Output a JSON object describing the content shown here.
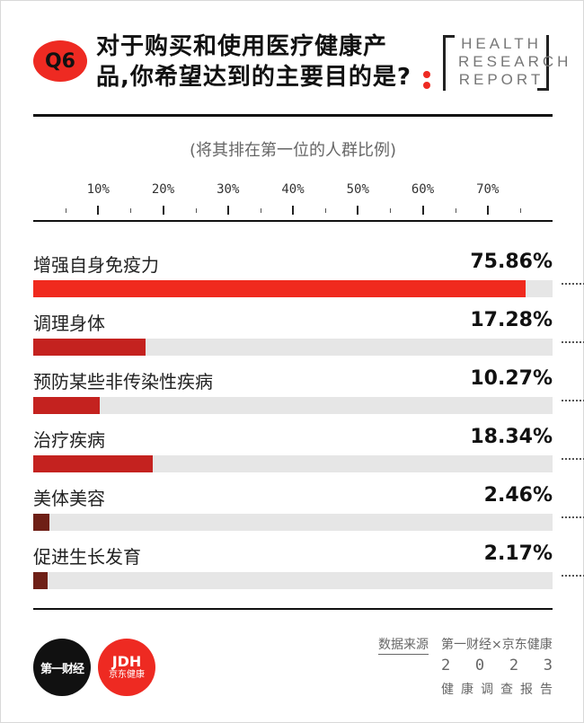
{
  "header": {
    "badge": "Q6",
    "question": "对于购买和使用医疗健康产品,你希望达到的主要目的是?",
    "report_lines": [
      "HEALTH",
      "RESEARCH",
      "REPORT"
    ]
  },
  "chart_data": {
    "type": "bar",
    "orientation": "horizontal",
    "subtitle": "(将其排在第一位的人群比例)",
    "x_ticks": [
      "10%",
      "20%",
      "30%",
      "40%",
      "50%",
      "60%",
      "70%"
    ],
    "xlim": [
      0,
      80
    ],
    "categories": [
      "增强自身免疫力",
      "调理身体",
      "预防某些非传染性疾病",
      "治疗疾病",
      "美体美容",
      "促进生长发育"
    ],
    "values": [
      75.86,
      17.28,
      10.27,
      18.34,
      2.46,
      2.17
    ],
    "value_labels": [
      "75.86%",
      "17.28%",
      "10.27%",
      "18.34%",
      "2.46%",
      "2.17%"
    ],
    "colors": [
      "#f02a1e",
      "#c4221f",
      "#c4221f",
      "#c4221f",
      "#6e1f16",
      "#6e1f16"
    ],
    "track_color": "#e6e6e6"
  },
  "footer": {
    "logo_left": "第一财经",
    "logo_right_top": "JDH",
    "logo_right_bottom": "京东健康",
    "source_label": "数据来源",
    "source_value": "第一财经×京东健康",
    "year_digits": [
      "2",
      "0",
      "2",
      "3"
    ],
    "report_name": "健康调查报告"
  }
}
